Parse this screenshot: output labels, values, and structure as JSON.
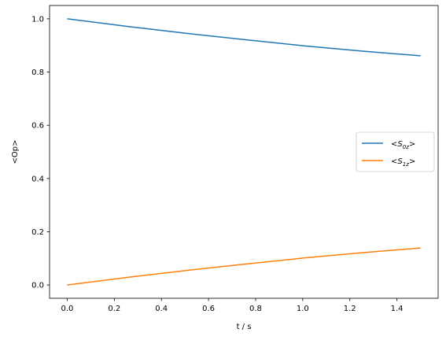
{
  "chart_data": {
    "type": "line",
    "xlabel": "t / s",
    "ylabel": "<Op>",
    "xlim": [
      -0.075,
      1.575
    ],
    "ylim": [
      -0.05,
      1.05
    ],
    "xticks": [
      0.0,
      0.2,
      0.4,
      0.6,
      0.8,
      1.0,
      1.2,
      1.4
    ],
    "xtick_labels": [
      "0.0",
      "0.2",
      "0.4",
      "0.6",
      "0.8",
      "1.0",
      "1.2",
      "1.4"
    ],
    "yticks": [
      0.0,
      0.2,
      0.4,
      0.6,
      0.8,
      1.0
    ],
    "ytick_labels": [
      "0.0",
      "0.2",
      "0.4",
      "0.6",
      "0.8",
      "1.0"
    ],
    "grid": false,
    "legend": "center-right",
    "series": [
      {
        "name": "<S0z>",
        "legend_main": "<S",
        "legend_sub": "0z",
        "legend_end": ">",
        "color": "#1f77b4",
        "x": [
          0.0,
          0.25,
          0.5,
          0.75,
          1.0,
          1.25,
          1.5
        ],
        "y": [
          1.0,
          0.972,
          0.946,
          0.922,
          0.899,
          0.879,
          0.861
        ]
      },
      {
        "name": "<S1z>",
        "legend_main": "<S",
        "legend_sub": "1z",
        "legend_end": ">",
        "color": "#ff7f0e",
        "x": [
          0.0,
          0.25,
          0.5,
          0.75,
          1.0,
          1.25,
          1.5
        ],
        "y": [
          0.0,
          0.028,
          0.054,
          0.078,
          0.101,
          0.121,
          0.139
        ]
      }
    ]
  }
}
